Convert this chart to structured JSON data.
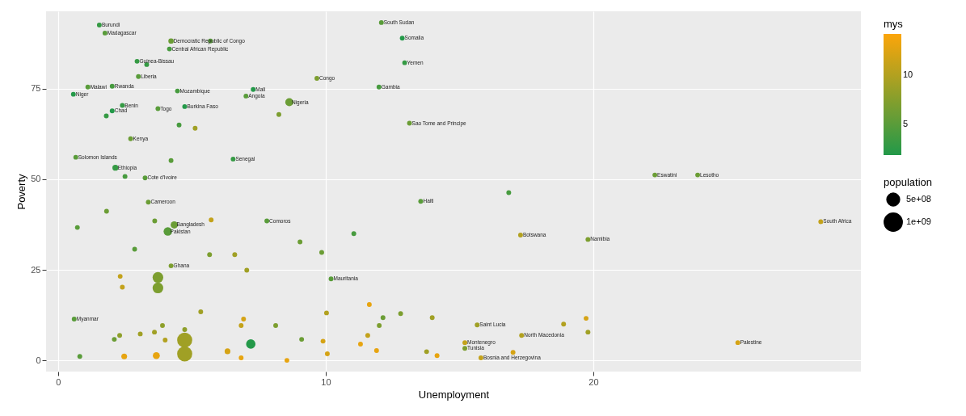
{
  "chart_data": {
    "type": "bubble",
    "xlabel": "Unemployment",
    "ylabel": "Poverty",
    "clabel": "mys",
    "legend_title": "population",
    "grid": true,
    "xlim": [
      -0.45,
      30.0
    ],
    "ylim": [
      -3.1,
      96.4
    ],
    "xticks": [
      0,
      10,
      20
    ],
    "yticks": [
      0,
      25,
      50,
      75
    ],
    "clim": [
      1.9,
      14.2
    ],
    "cticks": [
      5,
      10
    ],
    "size_legend": [
      {
        "value": 500000000,
        "label": "5e+08"
      },
      {
        "value": 1000000000,
        "label": "1e+09"
      }
    ],
    "series": [
      {
        "x": [
          1.54,
          1.75,
          4.22,
          5.69,
          4.16,
          2.95,
          3.31,
          3.0,
          1.11,
          2.02,
          0.57,
          4.46,
          7.29,
          7.02,
          8.64,
          8.25,
          2.4,
          2.02,
          1.8,
          3.73,
          4.73,
          4.52,
          5.12,
          2.71,
          0.66,
          4.22,
          6.54,
          2.14,
          2.5,
          3.25,
          12.08,
          12.86,
          12.95,
          9.67,
          11.99,
          13.13,
          3.37,
          1.81,
          0.72,
          3.61,
          4.34,
          4.1,
          5.72,
          7.8,
          2.86,
          5.66,
          6.6,
          4.22,
          7.05,
          2.32,
          3.73,
          2.4,
          3.73,
          0.6,
          5.33,
          13.55,
          16.84,
          11.05,
          17.28,
          19.8,
          9.04,
          9.85,
          10.2,
          11.63,
          10.03,
          12.14,
          12.8,
          13.98,
          15.66,
          18.89,
          19.73,
          17.32,
          19.8,
          12.0,
          11.57,
          15.2,
          15.2,
          15.8,
          17.0,
          9.9,
          11.3,
          11.9,
          13.77,
          14.16,
          10.06,
          22.3,
          23.9,
          28.5,
          25.4,
          2.1,
          2.3,
          3.07,
          3.6,
          3.9,
          4.0,
          0.81,
          2.47,
          3.67,
          4.73,
          4.73,
          7.2,
          4.73,
          6.33,
          6.84,
          8.55,
          9.1,
          8.13,
          6.93,
          6.84
        ],
        "values": [
          92.6,
          90.4,
          88.2,
          88.2,
          86,
          82.6,
          81.7,
          78.4,
          75.5,
          75.7,
          73.5,
          74.4,
          74.8,
          73,
          71.3,
          67.9,
          70.4,
          68.9,
          67.5,
          69.5,
          70.1,
          65,
          64.1,
          61.2,
          56.1,
          55.2,
          55.6,
          53.2,
          50.8,
          50.4,
          93.3,
          89,
          82.2,
          77.9,
          75.5,
          65.5,
          43.7,
          41.2,
          36.7,
          38.5,
          37.4,
          35.6,
          38.8,
          38.5,
          30.7,
          29.2,
          29.2,
          26.1,
          24.9,
          23.2,
          22.9,
          20.2,
          20.0,
          11.4,
          13.4,
          43.9,
          46.3,
          35,
          34.6,
          33.4,
          32.7,
          29.8,
          22.5,
          15.4,
          13.1,
          11.8,
          12.9,
          11.8,
          9.8,
          10,
          11.6,
          6.9,
          7.8,
          9.6,
          6.9,
          4.9,
          3.3,
          0.7,
          2.2,
          5.3,
          4.5,
          2.7,
          2.4,
          1.3,
          1.8,
          51.2,
          51.2,
          38.3,
          4.9,
          5.8,
          6.9,
          7.3,
          7.8,
          9.6,
          5.6,
          1.1,
          1.1,
          1.3,
          5.6,
          1.8,
          4.5,
          8.5,
          2.5,
          0.7,
          0,
          5.8,
          9.6,
          11.4,
          9.6
        ],
        "sizes": [
          70000000,
          70000000,
          90000000,
          70000000,
          70000000,
          70000000,
          70000000,
          70000000,
          70000000,
          70000000,
          70000000,
          70000000,
          70000000,
          70000000,
          200000000,
          70000000,
          70000000,
          70000000,
          70000000,
          70000000,
          70000000,
          70000000,
          70000000,
          70000000,
          70000000,
          70000000,
          70000000,
          110000000,
          70000000,
          70000000,
          70000000,
          70000000,
          70000000,
          70000000,
          70000000,
          70000000,
          70000000,
          70000000,
          70000000,
          70000000,
          160000000,
          220000000,
          70000000,
          70000000,
          70000000,
          70000000,
          70000000,
          70000000,
          70000000,
          70000000,
          350000000,
          70000000,
          350000000,
          70000000,
          70000000,
          70000000,
          70000000,
          70000000,
          70000000,
          70000000,
          70000000,
          70000000,
          70000000,
          70000000,
          70000000,
          70000000,
          70000000,
          70000000,
          70000000,
          70000000,
          70000000,
          70000000,
          70000000,
          70000000,
          70000000,
          70000000,
          70000000,
          70000000,
          70000000,
          70000000,
          70000000,
          70000000,
          70000000,
          70000000,
          70000000,
          70000000,
          70000000,
          70000000,
          70000000,
          70000000,
          70000000,
          70000000,
          70000000,
          70000000,
          70000000,
          70000000,
          100000000,
          150000000,
          700000000,
          700000000,
          270000000,
          70000000,
          100000000,
          70000000,
          70000000,
          70000000,
          70000000,
          70000000,
          70000000
        ],
        "cvalues": [
          3,
          5,
          6,
          5,
          4,
          3,
          3,
          5,
          5,
          4,
          2,
          4,
          2,
          5,
          6,
          7,
          3,
          2,
          3,
          5,
          2,
          4,
          9,
          6,
          5,
          5,
          3,
          3,
          4,
          5,
          5,
          2,
          3,
          7,
          4,
          6,
          6,
          6,
          5,
          6,
          6,
          5,
          11,
          5,
          5,
          7,
          9,
          7,
          9,
          11,
          7,
          11,
          7,
          5,
          9,
          5,
          4,
          4,
          10,
          7,
          6,
          6,
          5,
          13,
          10,
          6,
          7,
          9,
          9,
          10,
          12,
          10,
          9,
          7,
          11,
          11,
          7,
          11,
          12,
          12,
          13,
          13,
          9,
          13,
          12,
          6,
          6,
          11,
          12,
          6,
          8,
          9,
          9,
          8,
          10,
          5,
          13,
          13,
          9,
          9,
          2,
          8,
          12,
          13,
          13,
          6,
          7,
          12,
          11
        ]
      }
    ],
    "annotations": [
      {
        "text": "Burundi",
        "x": 1.54,
        "y": 92.6
      },
      {
        "text": "Madagascar",
        "x": 1.75,
        "y": 90.4
      },
      {
        "text": "Democratic Republic of Congo",
        "x": 4.22,
        "y": 88.2
      },
      {
        "text": "Central African Republic",
        "x": 4.16,
        "y": 86
      },
      {
        "text": "Guinea-Bissau",
        "x": 2.95,
        "y": 82.6
      },
      {
        "text": "Liberia",
        "x": 3.0,
        "y": 78.4
      },
      {
        "text": "Malawi",
        "x": 1.11,
        "y": 75.5
      },
      {
        "text": "Rwanda",
        "x": 2.02,
        "y": 75.7
      },
      {
        "text": "Niger",
        "x": 0.57,
        "y": 73.5
      },
      {
        "text": "Mozambique",
        "x": 4.46,
        "y": 74.4
      },
      {
        "text": "Mali",
        "x": 7.29,
        "y": 74.8
      },
      {
        "text": "Angola",
        "x": 7.02,
        "y": 73
      },
      {
        "text": "Nigeria",
        "x": 8.64,
        "y": 71.3
      },
      {
        "text": "Benin",
        "x": 2.4,
        "y": 70.4
      },
      {
        "text": "Chad",
        "x": 2.02,
        "y": 68.9
      },
      {
        "text": "Togo",
        "x": 3.73,
        "y": 69.5
      },
      {
        "text": "Burkina Faso",
        "x": 4.73,
        "y": 70.1
      },
      {
        "text": "Kenya",
        "x": 2.71,
        "y": 61.2
      },
      {
        "text": "Solomon Islands",
        "x": 0.66,
        "y": 56.1
      },
      {
        "text": "Senegal",
        "x": 6.54,
        "y": 55.6
      },
      {
        "text": "Ethiopia",
        "x": 2.14,
        "y": 53.2
      },
      {
        "text": "Cote d'Ivoire",
        "x": 3.25,
        "y": 50.4
      },
      {
        "text": "South Sudan",
        "x": 12.08,
        "y": 93.3
      },
      {
        "text": "Somalia",
        "x": 12.86,
        "y": 89
      },
      {
        "text": "Yemen",
        "x": 12.95,
        "y": 82.2
      },
      {
        "text": "Congo",
        "x": 9.67,
        "y": 77.9
      },
      {
        "text": "Gambia",
        "x": 11.99,
        "y": 75.5
      },
      {
        "text": "Sao Tome and Principe",
        "x": 13.13,
        "y": 65.5
      },
      {
        "text": "Cameroon",
        "x": 3.37,
        "y": 43.7
      },
      {
        "text": "Bangladesh",
        "x": 4.34,
        "y": 37.4
      },
      {
        "text": "Pakistan",
        "x": 4.1,
        "y": 35.6
      },
      {
        "text": "Comoros",
        "x": 7.8,
        "y": 38.5
      },
      {
        "text": "Ghana",
        "x": 4.22,
        "y": 26.1
      },
      {
        "text": "Myanmar",
        "x": 0.6,
        "y": 11.4
      },
      {
        "text": "Haiti",
        "x": 13.55,
        "y": 43.9
      },
      {
        "text": "Botswana",
        "x": 17.28,
        "y": 34.6
      },
      {
        "text": "Namibia",
        "x": 19.8,
        "y": 33.4
      },
      {
        "text": "Mauritania",
        "x": 10.2,
        "y": 22.5
      },
      {
        "text": "Saint Lucia",
        "x": 15.66,
        "y": 9.8
      },
      {
        "text": "North Macedonia",
        "x": 17.32,
        "y": 6.9
      },
      {
        "text": "Montenegro",
        "x": 15.2,
        "y": 4.9
      },
      {
        "text": "Tunisia",
        "x": 15.2,
        "y": 3.3
      },
      {
        "text": "Bosnia and Herzegovina",
        "x": 15.8,
        "y": 0.7
      },
      {
        "text": "Eswatini",
        "x": 22.3,
        "y": 51.2
      },
      {
        "text": "Lesotho",
        "x": 23.9,
        "y": 51.2
      },
      {
        "text": "South Africa",
        "x": 28.5,
        "y": 38.3
      },
      {
        "text": "Palestine",
        "x": 25.4,
        "y": 4.9
      }
    ]
  }
}
